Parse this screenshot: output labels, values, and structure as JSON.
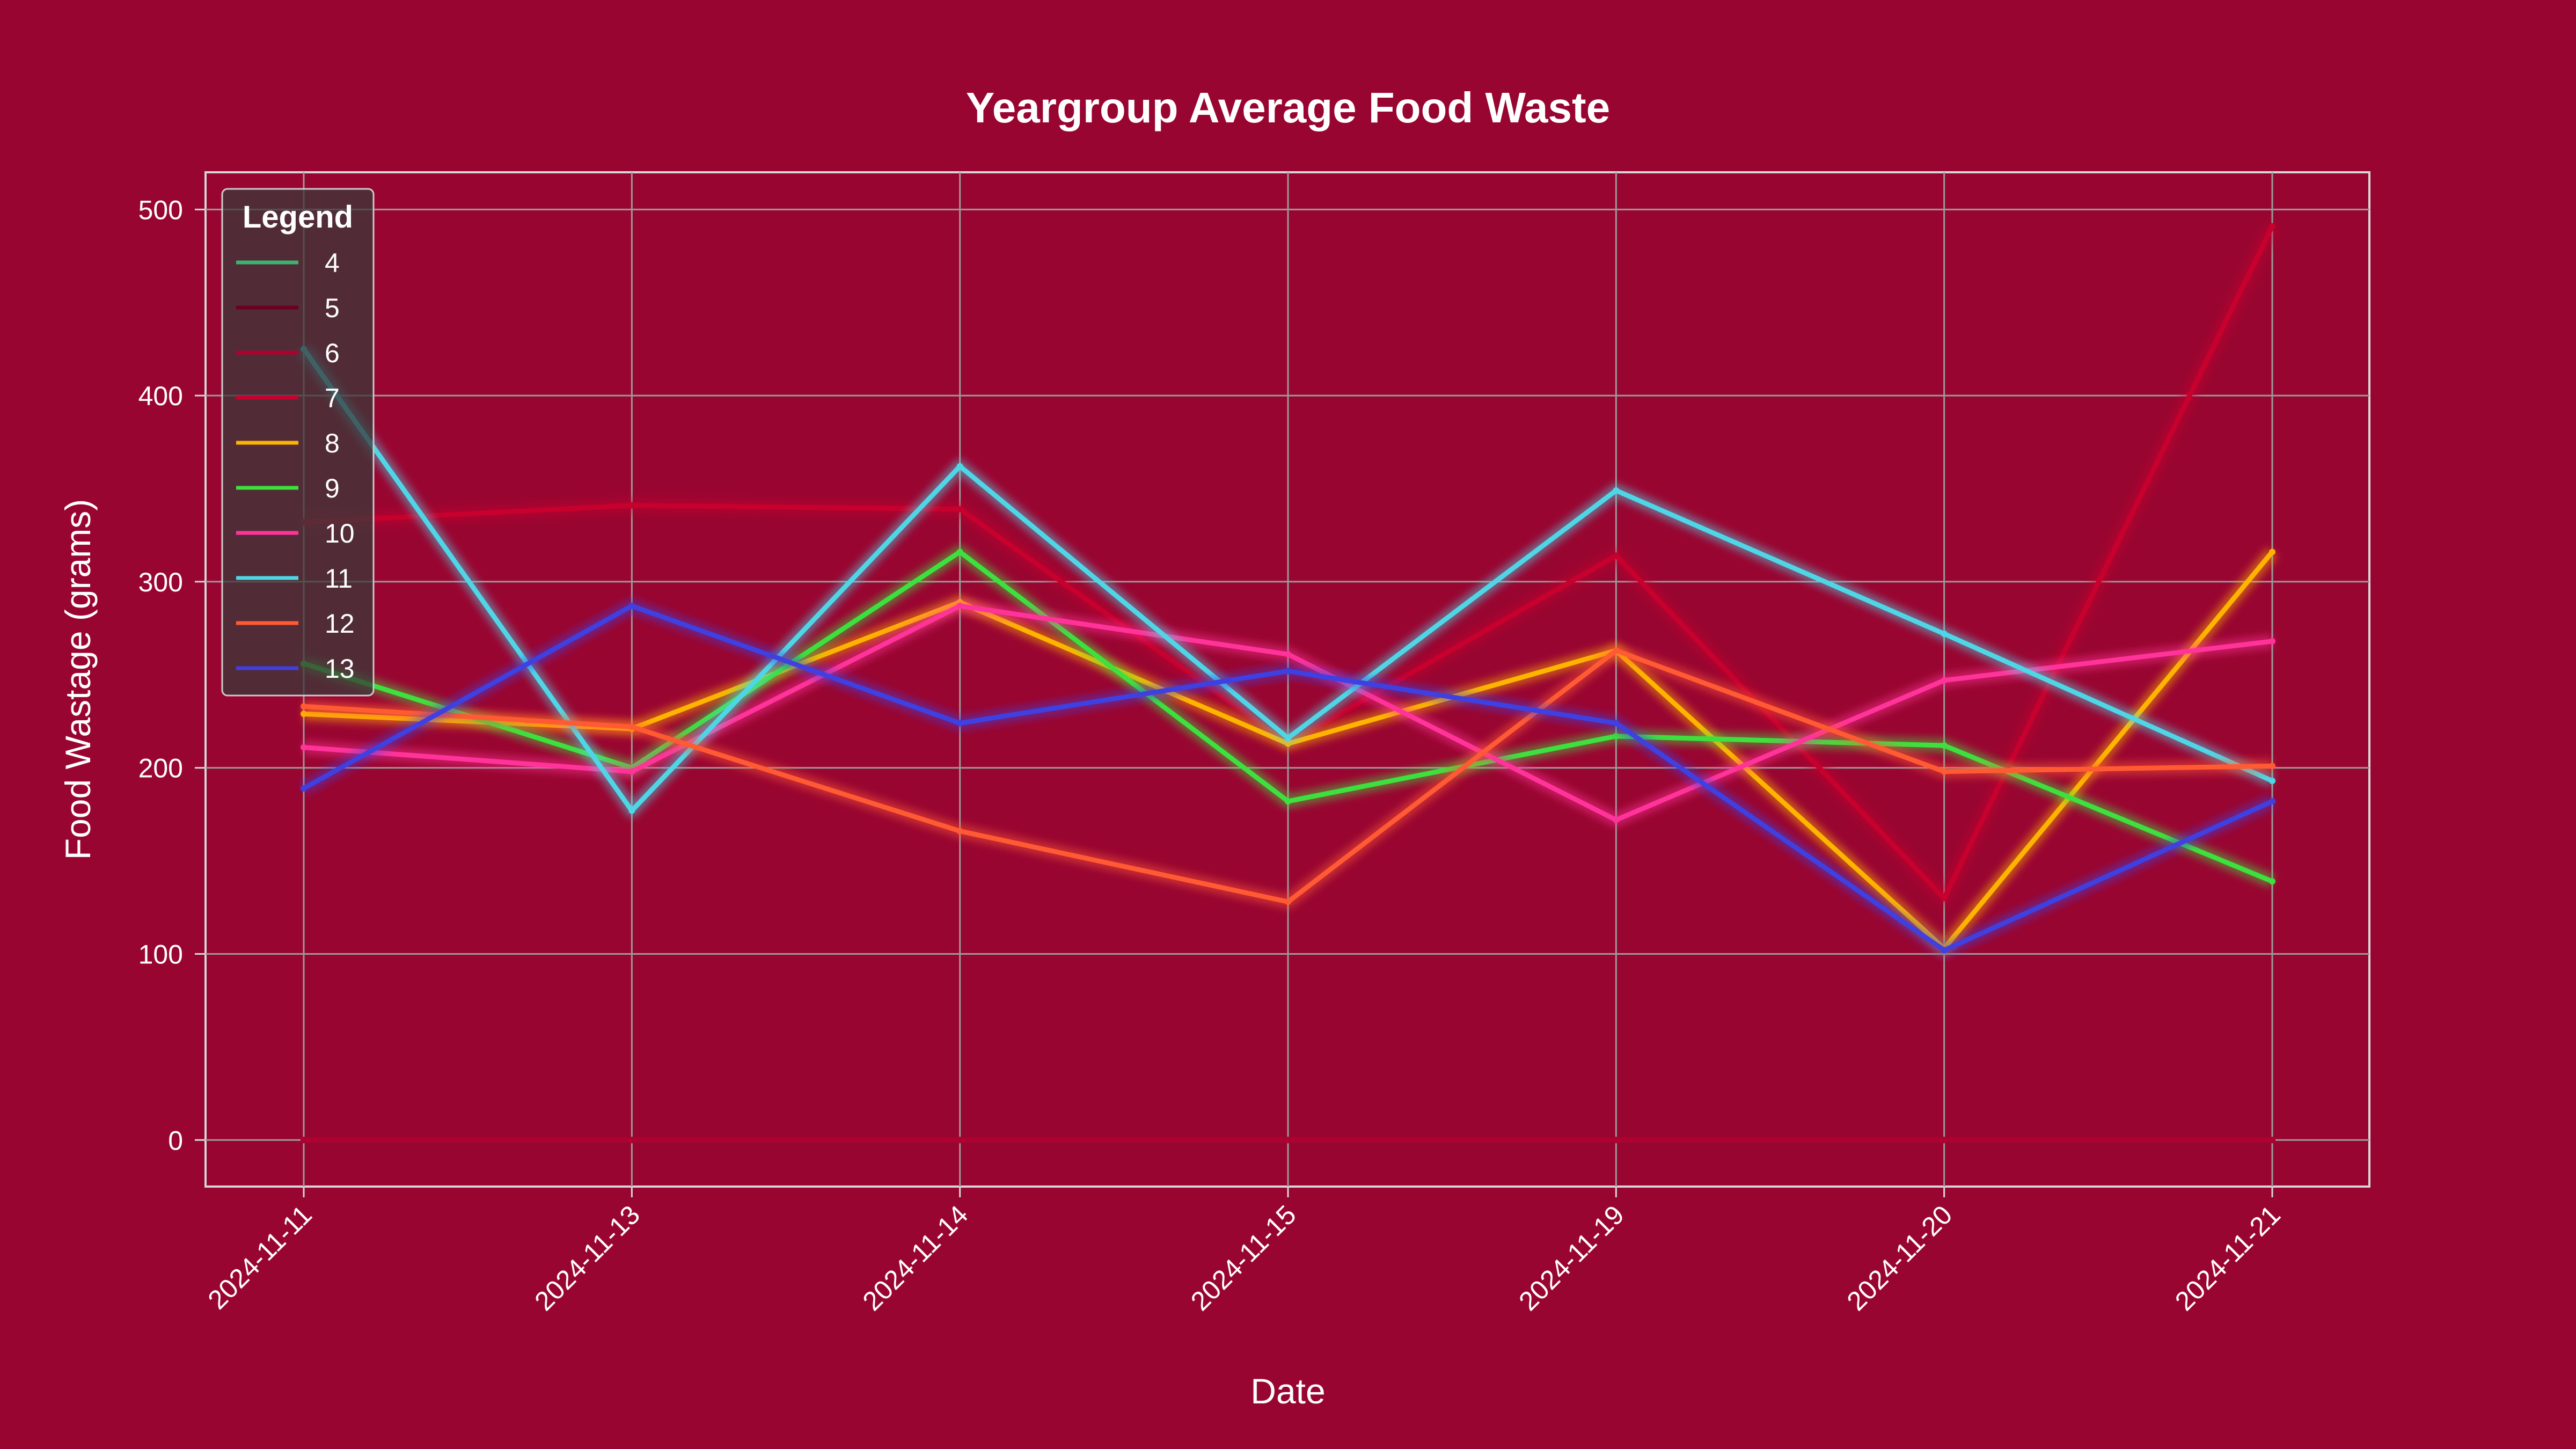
{
  "chart_data": {
    "type": "line",
    "title": "Yeargroup Average Food Waste",
    "xlabel": "Date",
    "ylabel": "Food Wastage (grams)",
    "categories": [
      "2024-11-11",
      "2024-11-13",
      "2024-11-14",
      "2024-11-15",
      "2024-11-19",
      "2024-11-20",
      "2024-11-21"
    ],
    "yticks": [
      0,
      100,
      200,
      300,
      400,
      500
    ],
    "ylim": [
      -25,
      520
    ],
    "grid": true,
    "legend": {
      "title": "Legend",
      "placement": "top-left"
    },
    "series": [
      {
        "name": "4",
        "color": "#3cb371",
        "values": [
          0,
          0,
          0,
          0,
          0,
          0,
          0
        ]
      },
      {
        "name": "5",
        "color": "#6b0021",
        "values": [
          0,
          0,
          0,
          0,
          0,
          0,
          0
        ]
      },
      {
        "name": "6",
        "color": "#b00030",
        "values": [
          0,
          0,
          0,
          0,
          0,
          0,
          0
        ]
      },
      {
        "name": "7",
        "color": "#c8002e",
        "values": [
          332,
          341,
          339,
          213,
          314,
          130,
          491
        ]
      },
      {
        "name": "8",
        "color": "#ffb400",
        "values": [
          229,
          221,
          289,
          213,
          263,
          103,
          316
        ]
      },
      {
        "name": "9",
        "color": "#3ee03e",
        "values": [
          256,
          200,
          316,
          182,
          217,
          212,
          139
        ]
      },
      {
        "name": "10",
        "color": "#ff3399",
        "values": [
          211,
          198,
          287,
          261,
          172,
          247,
          268
        ]
      },
      {
        "name": "11",
        "color": "#4fd6e6",
        "values": [
          425,
          177,
          362,
          216,
          349,
          272,
          193
        ]
      },
      {
        "name": "12",
        "color": "#ff5a33",
        "values": [
          233,
          222,
          166,
          128,
          263,
          198,
          201
        ]
      },
      {
        "name": "13",
        "color": "#4040e0",
        "values": [
          189,
          287,
          224,
          252,
          224,
          102,
          182
        ]
      }
    ]
  }
}
